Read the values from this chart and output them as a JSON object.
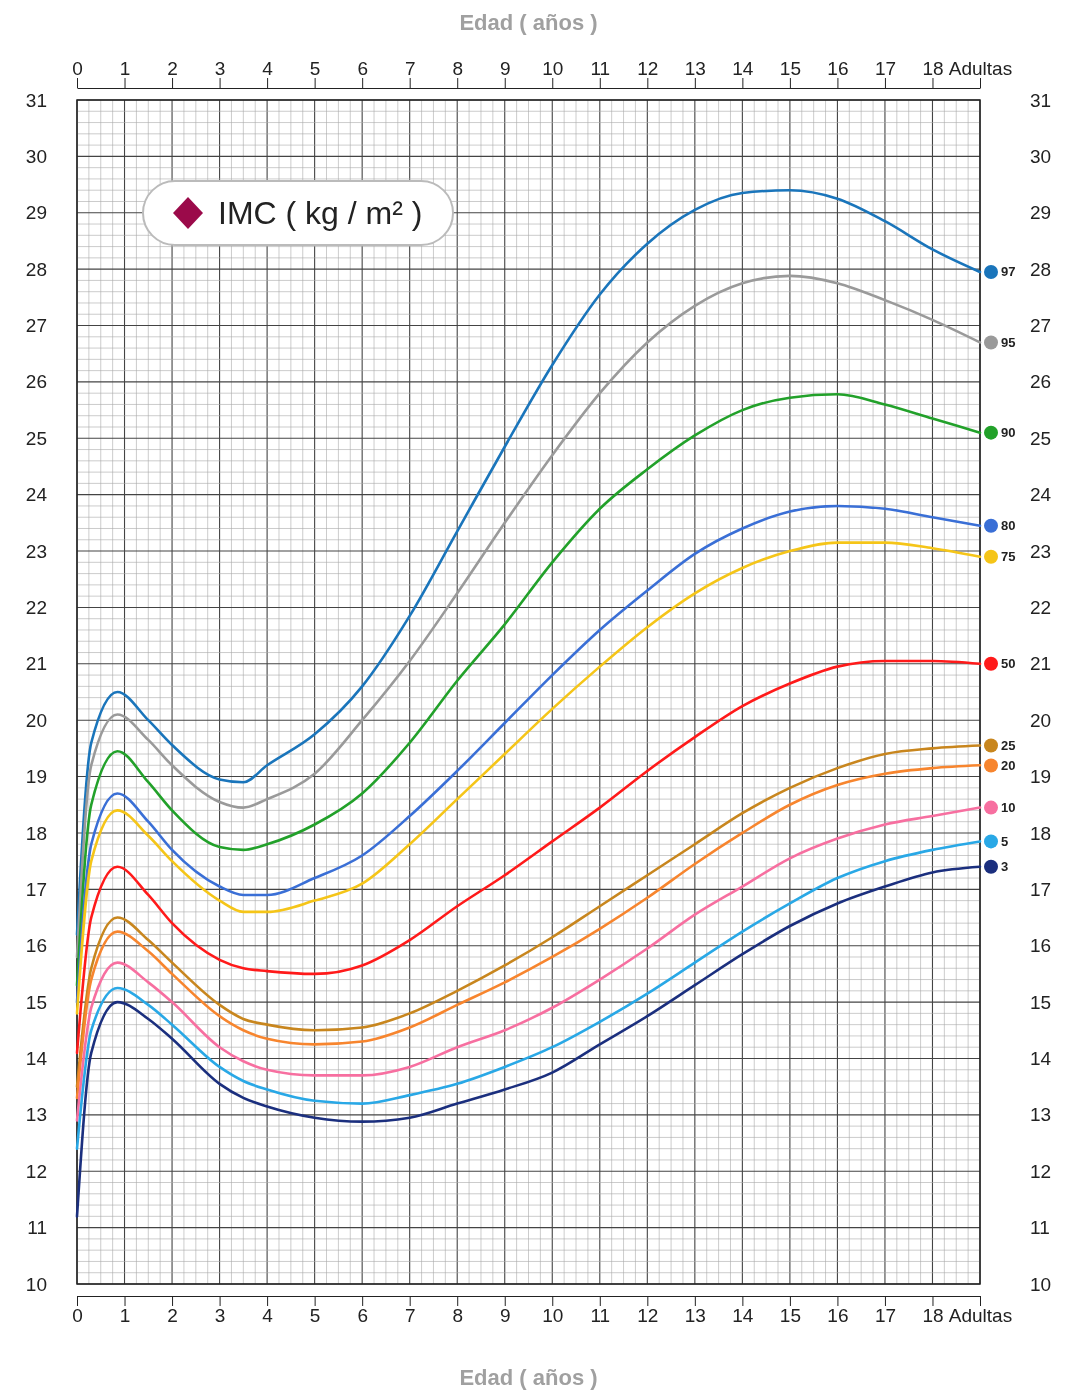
{
  "chart_data": {
    "type": "line",
    "xlabel": "Edad ( años )",
    "x2label": "Edad ( años )",
    "ylabel": "IMC ( kg / m² )",
    "x": [
      0,
      0.3,
      0.85,
      1.5,
      2,
      3,
      3.5,
      4,
      5,
      6,
      7,
      8,
      9,
      10,
      11,
      12,
      13,
      14,
      15,
      16,
      17,
      18,
      19
    ],
    "xlim": [
      0,
      19
    ],
    "xticks": [
      0,
      1,
      2,
      3,
      4,
      5,
      6,
      7,
      8,
      9,
      10,
      11,
      12,
      13,
      14,
      15,
      16,
      17,
      18,
      {
        "value": 19,
        "label": "Adultas"
      }
    ],
    "x2lim": [
      0,
      19
    ],
    "x2ticks": [
      0,
      1,
      2,
      3,
      4,
      5,
      6,
      7,
      8,
      9,
      10,
      11,
      12,
      13,
      14,
      15,
      16,
      17,
      18,
      {
        "value": 19,
        "label": "Adultas"
      }
    ],
    "ylim": [
      10,
      31
    ],
    "yticks": [
      10,
      11,
      12,
      13,
      14,
      15,
      16,
      17,
      18,
      19,
      20,
      21,
      22,
      23,
      24,
      25,
      26,
      27,
      28,
      29,
      30,
      31
    ],
    "y2lim": [
      10,
      31
    ],
    "y2ticks": [
      10,
      11,
      12,
      13,
      14,
      15,
      16,
      17,
      18,
      19,
      20,
      21,
      22,
      23,
      24,
      25,
      26,
      27,
      28,
      29,
      30,
      31
    ],
    "grid": true,
    "legend": "right",
    "series": [
      {
        "name": "97",
        "color": "#1a75bb",
        "values": [
          16.2,
          19.6,
          20.5,
          20.0,
          19.56,
          18.95,
          18.9,
          19.2,
          19.75,
          20.6,
          21.85,
          23.35,
          24.85,
          26.3,
          27.55,
          28.45,
          29.05,
          29.35,
          29.4,
          29.25,
          28.85,
          28.35,
          27.95
        ]
      },
      {
        "name": "95",
        "color": "#9a9a9a",
        "values": [
          15.8,
          19.2,
          20.1,
          19.65,
          19.2,
          18.55,
          18.45,
          18.6,
          19.05,
          20.0,
          21.05,
          22.25,
          23.5,
          24.7,
          25.8,
          26.7,
          27.35,
          27.75,
          27.88,
          27.75,
          27.45,
          27.1,
          26.7
        ]
      },
      {
        "name": "90",
        "color": "#22a12a",
        "values": [
          15.3,
          18.5,
          19.45,
          18.9,
          18.4,
          17.75,
          17.7,
          17.8,
          18.15,
          18.7,
          19.6,
          20.7,
          21.7,
          22.8,
          23.75,
          24.45,
          25.05,
          25.5,
          25.72,
          25.78,
          25.6,
          25.35,
          25.1
        ]
      },
      {
        "name": "80",
        "color": "#3a6fd6",
        "values": [
          15.0,
          17.8,
          18.7,
          18.2,
          17.7,
          17.05,
          16.9,
          16.9,
          17.2,
          17.6,
          18.3,
          19.1,
          19.95,
          20.8,
          21.6,
          22.3,
          22.95,
          23.4,
          23.7,
          23.8,
          23.75,
          23.6,
          23.45
        ]
      },
      {
        "name": "75",
        "color": "#f5c518",
        "values": [
          14.8,
          17.5,
          18.4,
          17.95,
          17.5,
          16.8,
          16.6,
          16.6,
          16.8,
          17.1,
          17.8,
          18.6,
          19.4,
          20.2,
          20.95,
          21.65,
          22.25,
          22.7,
          23.0,
          23.15,
          23.15,
          23.05,
          22.9
        ]
      },
      {
        "name": "50",
        "color": "#ff1a1a",
        "values": [
          14.1,
          16.5,
          17.4,
          16.9,
          16.4,
          15.75,
          15.6,
          15.55,
          15.5,
          15.65,
          16.1,
          16.7,
          17.25,
          17.85,
          18.45,
          19.1,
          19.7,
          20.25,
          20.65,
          20.95,
          21.05,
          21.05,
          21.0
        ]
      },
      {
        "name": "25",
        "color": "#c8861e",
        "values": [
          13.5,
          15.6,
          16.5,
          16.1,
          15.7,
          14.95,
          14.7,
          14.6,
          14.5,
          14.55,
          14.8,
          15.2,
          15.65,
          16.15,
          16.7,
          17.25,
          17.8,
          18.35,
          18.8,
          19.15,
          19.4,
          19.5,
          19.55
        ]
      },
      {
        "name": "20",
        "color": "#f7852e",
        "values": [
          13.3,
          15.4,
          16.25,
          15.9,
          15.5,
          14.75,
          14.5,
          14.35,
          14.25,
          14.3,
          14.55,
          14.95,
          15.35,
          15.8,
          16.3,
          16.85,
          17.45,
          18.0,
          18.5,
          18.85,
          19.05,
          19.15,
          19.2
        ]
      },
      {
        "name": "10",
        "color": "#f76fa0",
        "values": [
          12.9,
          14.9,
          15.7,
          15.35,
          15.0,
          14.2,
          13.95,
          13.8,
          13.7,
          13.7,
          13.85,
          14.2,
          14.5,
          14.9,
          15.4,
          15.95,
          16.55,
          17.05,
          17.55,
          17.9,
          18.15,
          18.3,
          18.45
        ]
      },
      {
        "name": "5",
        "color": "#29a8e6",
        "values": [
          12.4,
          14.5,
          15.25,
          14.95,
          14.6,
          13.85,
          13.6,
          13.45,
          13.25,
          13.2,
          13.35,
          13.55,
          13.85,
          14.2,
          14.65,
          15.15,
          15.7,
          16.25,
          16.75,
          17.2,
          17.5,
          17.7,
          17.85
        ]
      },
      {
        "name": "3",
        "color": "#1b2f7e",
        "values": [
          11.2,
          14.1,
          15.0,
          14.7,
          14.35,
          13.55,
          13.3,
          13.15,
          12.95,
          12.88,
          12.95,
          13.2,
          13.45,
          13.75,
          14.25,
          14.75,
          15.3,
          15.85,
          16.35,
          16.75,
          17.05,
          17.3,
          17.4
        ]
      }
    ]
  }
}
